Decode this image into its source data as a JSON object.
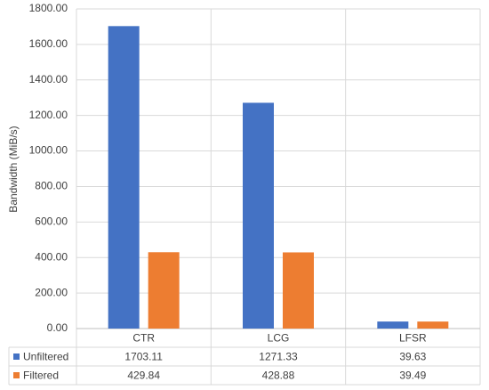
{
  "chart_data": {
    "type": "bar",
    "y_label": "Bandwidth (MiB/s)",
    "categories": [
      "CTR",
      "LCG",
      "LFSR"
    ],
    "series": [
      {
        "name": "Unfiltered",
        "color": "#4472c4",
        "values": [
          1703.11,
          1271.33,
          39.63
        ]
      },
      {
        "name": "Filtered",
        "color": "#ed7d31",
        "values": [
          429.84,
          428.88,
          39.49
        ]
      }
    ],
    "ylim": [
      0,
      1800
    ],
    "yticks": [
      {
        "value": 0,
        "label": "0.00"
      },
      {
        "value": 200,
        "label": "200.00"
      },
      {
        "value": 400,
        "label": "400.00"
      },
      {
        "value": 600,
        "label": "600.00"
      },
      {
        "value": 800,
        "label": "800.00"
      },
      {
        "value": 1000,
        "label": "1000.00"
      },
      {
        "value": 1200,
        "label": "1200.00"
      },
      {
        "value": 1400,
        "label": "1400.00"
      },
      {
        "value": 1600,
        "label": "1600.00"
      },
      {
        "value": 1800,
        "label": "1800.00"
      }
    ],
    "grid": true
  }
}
